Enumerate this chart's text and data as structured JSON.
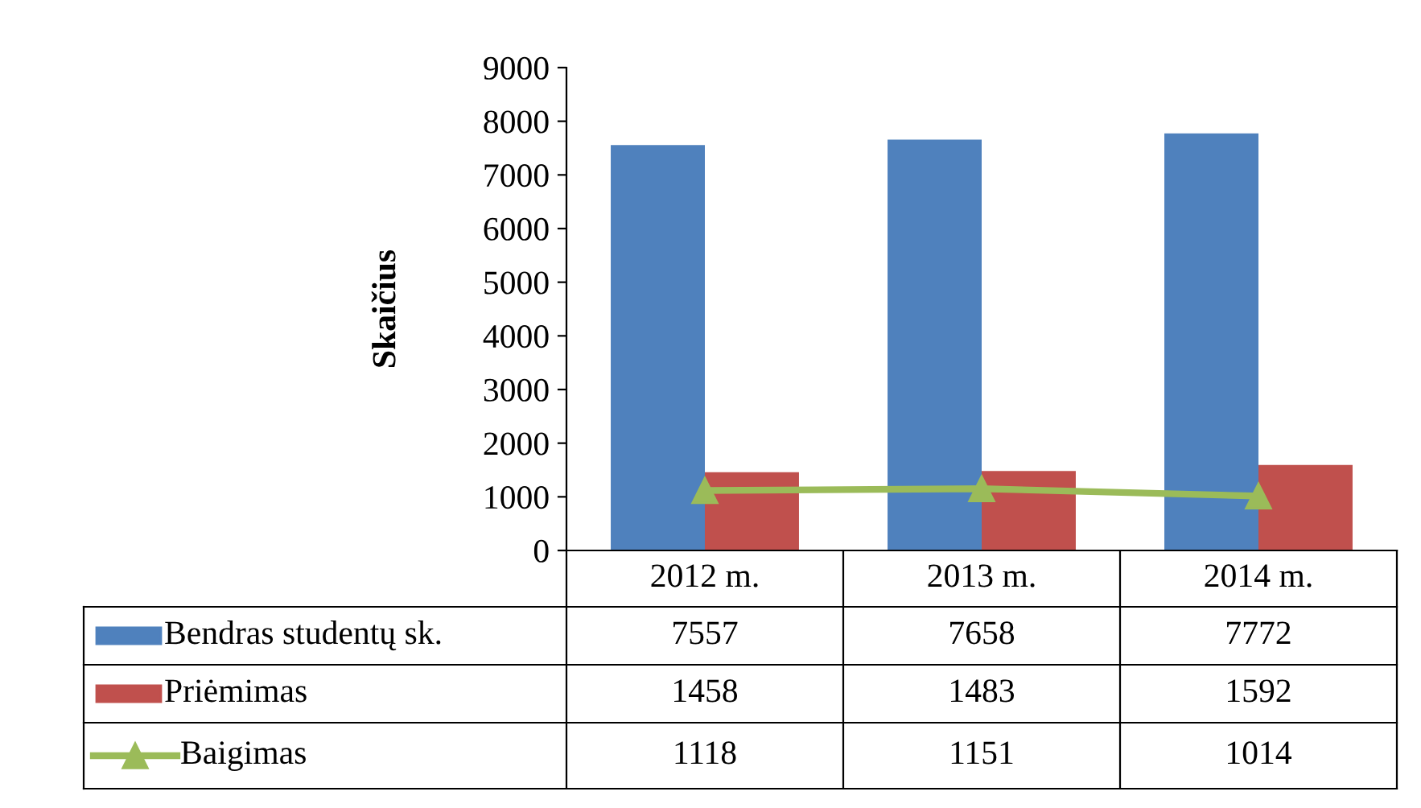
{
  "chart_data": {
    "type": "bar",
    "ylabel": "Skaičius",
    "categories": [
      "2012 m.",
      "2013 m.",
      "2014 m."
    ],
    "series": [
      {
        "name": "Bendras studentų sk.",
        "color": "#4f81bd",
        "values": [
          7557,
          7658,
          7772
        ]
      },
      {
        "name": "Priėmimas",
        "color": "#c0504d",
        "values": [
          1458,
          1483,
          1592
        ]
      },
      {
        "name": "Baigimas",
        "color": "#9bbb59",
        "type": "line",
        "marker": "triangle",
        "values": [
          1118,
          1151,
          1014
        ]
      }
    ],
    "ylim": [
      0,
      9000
    ],
    "yticks": [
      0,
      1000,
      2000,
      3000,
      4000,
      5000,
      6000,
      7000,
      8000,
      9000
    ],
    "grid": false,
    "legend": "bottom",
    "data_labels": true
  }
}
